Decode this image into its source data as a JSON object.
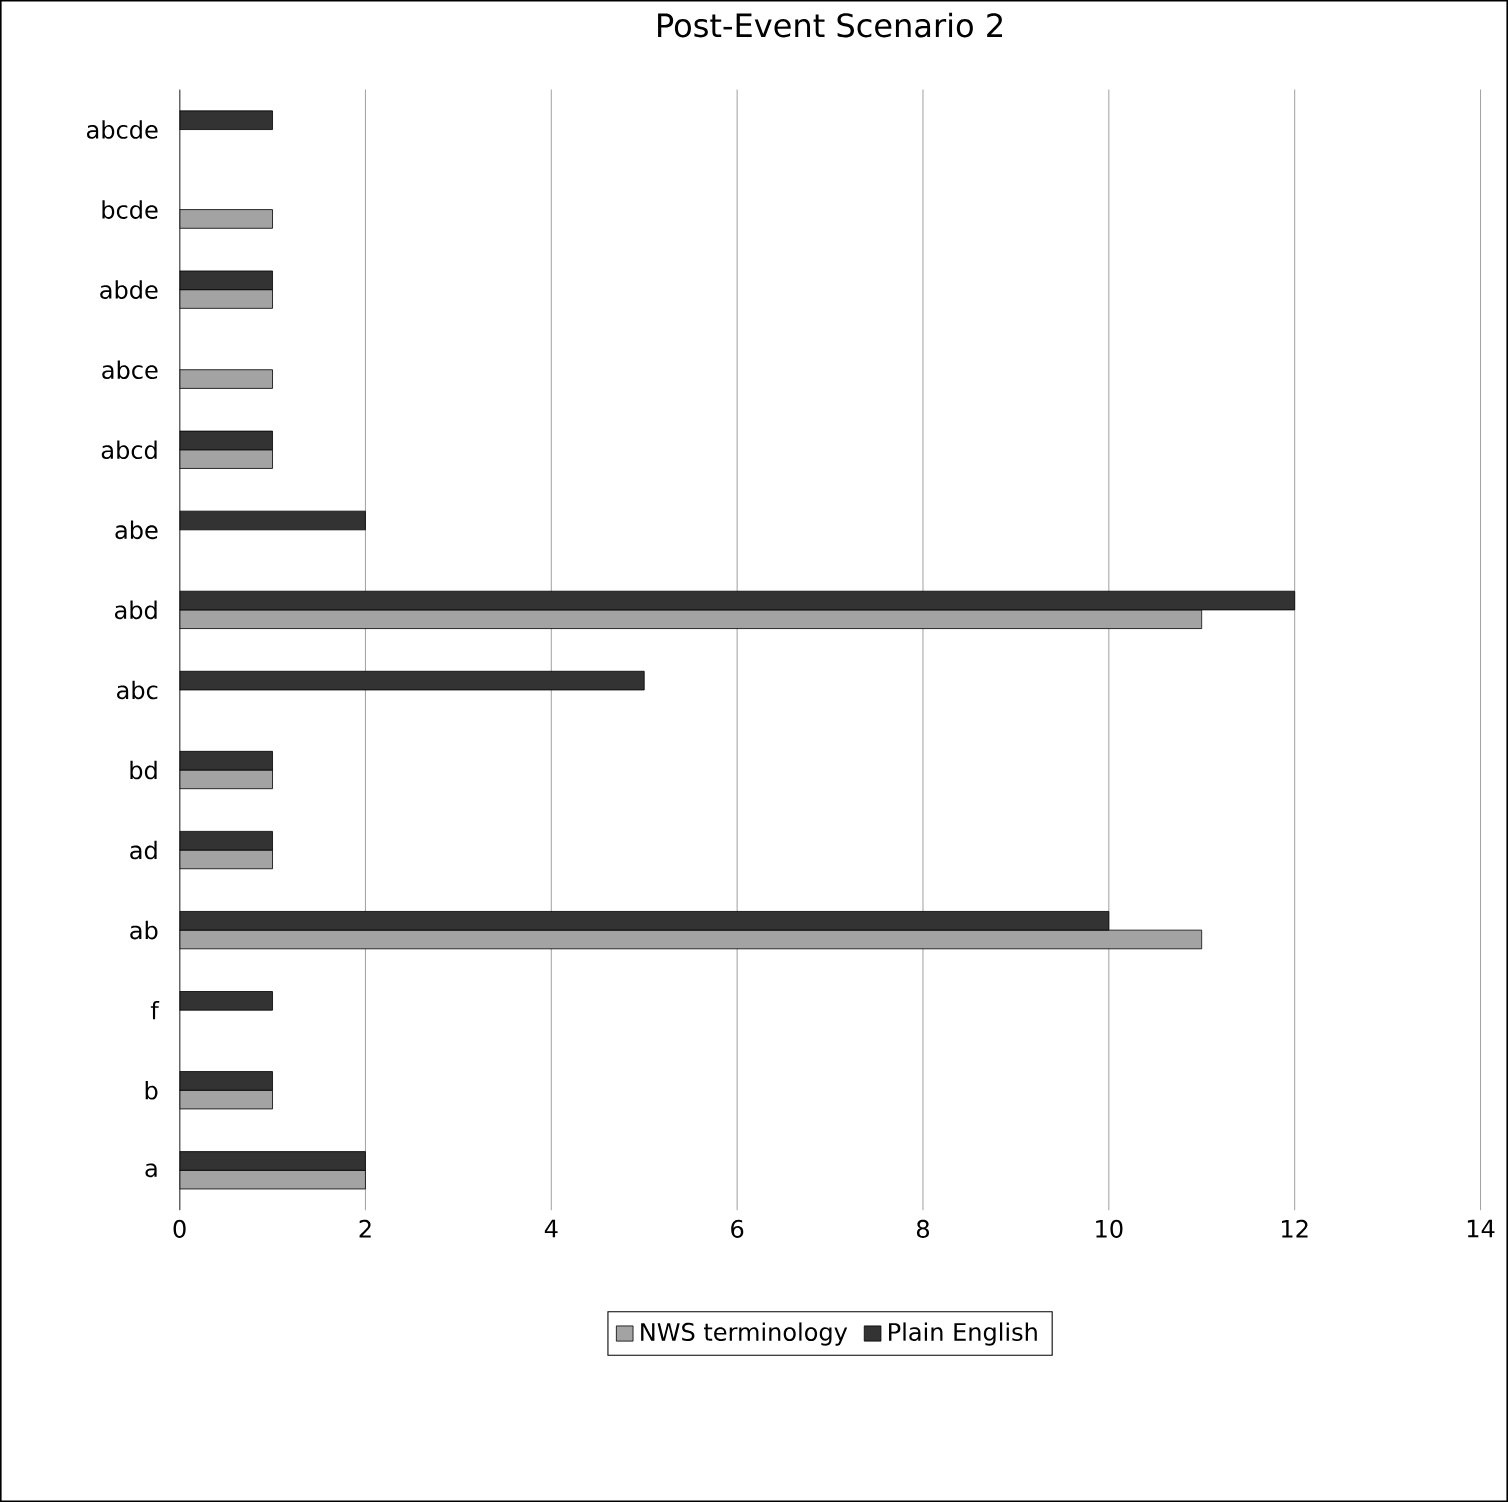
{
  "chart_data": {
    "type": "bar",
    "orientation": "horizontal",
    "title": "Post-Event Scenario 2",
    "categories": [
      "abcde",
      "bcde",
      "abde",
      "abce",
      "abcd",
      "abe",
      "abd",
      "abc",
      "bd",
      "ad",
      "ab",
      "f",
      "b",
      "a"
    ],
    "series": [
      {
        "name": "NWS terminology",
        "color": "#a3a3a3",
        "values": [
          null,
          1,
          1,
          1,
          1,
          null,
          11,
          null,
          1,
          1,
          11,
          null,
          1,
          2
        ]
      },
      {
        "name": "Plain English",
        "color": "#333333",
        "values": [
          1,
          null,
          1,
          null,
          1,
          2,
          12,
          5,
          1,
          1,
          10,
          1,
          1,
          2
        ]
      }
    ],
    "xlim": [
      0,
      14
    ],
    "xticks": [
      0,
      2,
      4,
      6,
      8,
      10,
      12,
      14
    ],
    "grid": "x",
    "legend": "bottom"
  }
}
